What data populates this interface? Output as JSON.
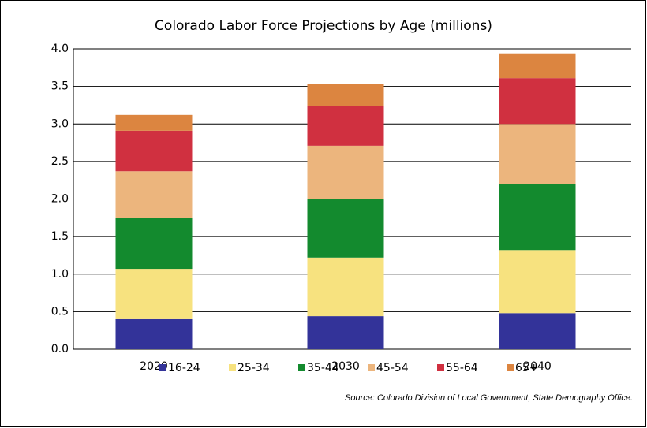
{
  "chart_data": {
    "type": "stacked_bar",
    "title": "Colorado Labor Force Projections by Age (millions)",
    "categories": [
      "2020",
      "2030",
      "2040"
    ],
    "series": [
      {
        "name": "16-24",
        "color": "#333399",
        "values": [
          0.4,
          0.44,
          0.48
        ]
      },
      {
        "name": "25-34",
        "color": "#f7e27f",
        "values": [
          0.67,
          0.78,
          0.84
        ]
      },
      {
        "name": "35-44",
        "color": "#138a2e",
        "values": [
          0.68,
          0.78,
          0.88
        ]
      },
      {
        "name": "45-54",
        "color": "#ecb57d",
        "values": [
          0.62,
          0.71,
          0.8
        ]
      },
      {
        "name": "55-64",
        "color": "#d03040",
        "values": [
          0.54,
          0.53,
          0.61
        ]
      },
      {
        "name": "65+",
        "color": "#dc8540",
        "values": [
          0.21,
          0.29,
          0.33
        ]
      }
    ],
    "ylim": [
      0,
      4
    ],
    "yticks": [
      {
        "value": 0,
        "label": "0.0"
      },
      {
        "value": 0.5,
        "label": "0.5"
      },
      {
        "value": 1,
        "label": "1.0"
      },
      {
        "value": 1.5,
        "label": "1.5"
      },
      {
        "value": 2,
        "label": "2.0"
      },
      {
        "value": 2.5,
        "label": "2.5"
      },
      {
        "value": 3,
        "label": "3.0"
      },
      {
        "value": 3.5,
        "label": "3.5"
      },
      {
        "value": 4,
        "label": "4.0"
      }
    ],
    "grid": true,
    "legend": "bottom",
    "source": "Source: Colorado Division of Local Government, State Demography Office."
  }
}
